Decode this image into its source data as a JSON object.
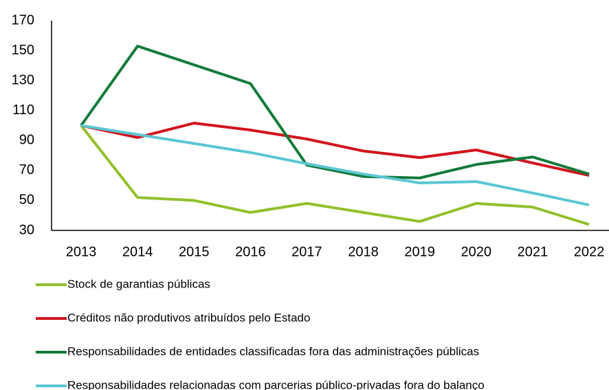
{
  "chart_data": {
    "type": "line",
    "categories": [
      "2013",
      "2014",
      "2015",
      "2016",
      "2017",
      "2018",
      "2019",
      "2020",
      "2021",
      "2022"
    ],
    "series": [
      {
        "name": "Stock de garantias públicas",
        "color": "#92c02c",
        "values": [
          100,
          52,
          50,
          42,
          48,
          42,
          36,
          48,
          45.6,
          34
        ]
      },
      {
        "name": "Créditos não produtivos atribuídos pelo Estado",
        "color": "#d2141e",
        "values": [
          100,
          92,
          101.6,
          97,
          91,
          83,
          78.6,
          83.7,
          75,
          66.7
        ]
      },
      {
        "name": "Responsabilidades de entidades classificadas fora das administrações públicas",
        "color": "#127a3a",
        "values": [
          100,
          153,
          140.5,
          128,
          73.6,
          66,
          65,
          74,
          79,
          67.6
        ]
      },
      {
        "name": "Responsabilidades relacionadas com parcerias público-privadas fora do balanço",
        "color": "#5bc6d3",
        "values": [
          100,
          94,
          88,
          82,
          74.5,
          67.6,
          61.7,
          62.6,
          55,
          47
        ]
      }
    ],
    "ylim": [
      30,
      170
    ],
    "yticks": [
      30,
      50,
      70,
      90,
      110,
      130,
      150,
      170
    ],
    "grid": false,
    "legend": "bottom"
  }
}
